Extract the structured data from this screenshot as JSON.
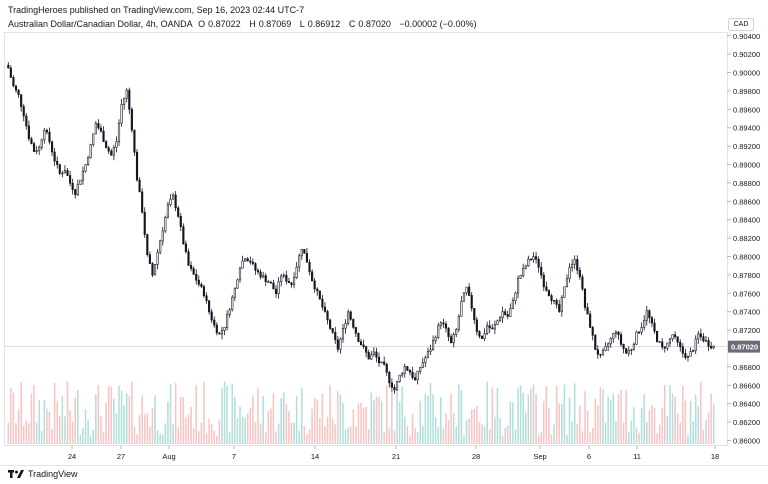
{
  "header": {
    "published_line": "TradingHeroes published on TradingView.com, Sep 16, 2023 02:44 UTC-7",
    "symbol_name": "Australian Dollar/Canadian Dollar, 4h, OANDA",
    "ohlc": {
      "open_label": "O",
      "open": "0.87022",
      "high_label": "H",
      "high": "0.87069",
      "low_label": "L",
      "low": "0.86912",
      "close_label": "C",
      "close": "0.87020",
      "change": "−0.00002 (−0.00%)"
    },
    "currency": "CAD"
  },
  "footer": {
    "brand": "TradingView"
  },
  "colors": {
    "up": "#26a69a",
    "down": "#ef5350",
    "candle": "#131722",
    "vol_up": "#b2dfdb",
    "vol_down": "#f8c4c4"
  },
  "chart_data": {
    "type": "candlestick",
    "title": "",
    "xlabel": "",
    "ylabel": "",
    "ylim": [
      0.8594,
      0.9043
    ],
    "y_ticks": [
      "0.90400",
      "0.90200",
      "0.90000",
      "0.89800",
      "0.89600",
      "0.89400",
      "0.89200",
      "0.89000",
      "0.88800",
      "0.88600",
      "0.88400",
      "0.88200",
      "0.88000",
      "0.87800",
      "0.87600",
      "0.87400",
      "0.87200",
      "0.86800",
      "0.86600",
      "0.86400",
      "0.86200",
      "0.86000"
    ],
    "x_ticks": [
      "24",
      "27",
      "Aug",
      "7",
      "14",
      "21",
      "28",
      "Sep",
      "6",
      "11",
      "18"
    ],
    "last_price": "0.87020",
    "grid": false,
    "close_path": [
      [
        0,
        0.9005
      ],
      [
        2,
        0.8985
      ],
      [
        4,
        0.8975
      ],
      [
        6,
        0.8955
      ],
      [
        8,
        0.893
      ],
      [
        10,
        0.8915
      ],
      [
        12,
        0.8918
      ],
      [
        14,
        0.894
      ],
      [
        16,
        0.8925
      ],
      [
        18,
        0.8905
      ],
      [
        20,
        0.889
      ],
      [
        22,
        0.8895
      ],
      [
        24,
        0.888
      ],
      [
        26,
        0.887
      ],
      [
        28,
        0.8885
      ],
      [
        30,
        0.89
      ],
      [
        32,
        0.892
      ],
      [
        34,
        0.8945
      ],
      [
        36,
        0.8935
      ],
      [
        38,
        0.892
      ],
      [
        40,
        0.891
      ],
      [
        42,
        0.8925
      ],
      [
        44,
        0.8965
      ],
      [
        46,
        0.898
      ],
      [
        48,
        0.894
      ],
      [
        50,
        0.8885
      ],
      [
        52,
        0.885
      ],
      [
        54,
        0.88
      ],
      [
        56,
        0.878
      ],
      [
        58,
        0.8805
      ],
      [
        60,
        0.883
      ],
      [
        62,
        0.8855
      ],
      [
        64,
        0.8865
      ],
      [
        66,
        0.8845
      ],
      [
        68,
        0.8815
      ],
      [
        70,
        0.879
      ],
      [
        72,
        0.878
      ],
      [
        74,
        0.877
      ],
      [
        76,
        0.876
      ],
      [
        78,
        0.874
      ],
      [
        80,
        0.8725
      ],
      [
        82,
        0.8715
      ],
      [
        84,
        0.8725
      ],
      [
        86,
        0.8745
      ],
      [
        88,
        0.8765
      ],
      [
        90,
        0.879
      ],
      [
        92,
        0.88
      ],
      [
        94,
        0.8795
      ],
      [
        96,
        0.8785
      ],
      [
        98,
        0.878
      ],
      [
        100,
        0.8775
      ],
      [
        102,
        0.877
      ],
      [
        104,
        0.876
      ],
      [
        106,
        0.878
      ],
      [
        108,
        0.8775
      ],
      [
        110,
        0.877
      ],
      [
        112,
        0.879
      ],
      [
        114,
        0.881
      ],
      [
        116,
        0.8795
      ],
      [
        118,
        0.8775
      ],
      [
        120,
        0.876
      ],
      [
        122,
        0.8745
      ],
      [
        124,
        0.873
      ],
      [
        126,
        0.8715
      ],
      [
        128,
        0.87
      ],
      [
        130,
        0.872
      ],
      [
        132,
        0.874
      ],
      [
        134,
        0.8725
      ],
      [
        136,
        0.871
      ],
      [
        138,
        0.87
      ],
      [
        140,
        0.869
      ],
      [
        142,
        0.8695
      ],
      [
        144,
        0.8685
      ],
      [
        146,
        0.868
      ],
      [
        148,
        0.8665
      ],
      [
        150,
        0.8655
      ],
      [
        152,
        0.867
      ],
      [
        154,
        0.868
      ],
      [
        156,
        0.8675
      ],
      [
        158,
        0.8665
      ],
      [
        160,
        0.868
      ],
      [
        162,
        0.869
      ],
      [
        164,
        0.87
      ],
      [
        166,
        0.8715
      ],
      [
        168,
        0.873
      ],
      [
        170,
        0.872
      ],
      [
        172,
        0.8705
      ],
      [
        174,
        0.872
      ],
      [
        176,
        0.875
      ],
      [
        178,
        0.8765
      ],
      [
        180,
        0.8745
      ],
      [
        182,
        0.872
      ],
      [
        184,
        0.871
      ],
      [
        186,
        0.8725
      ],
      [
        188,
        0.872
      ],
      [
        190,
        0.873
      ],
      [
        192,
        0.874
      ],
      [
        194,
        0.8735
      ],
      [
        196,
        0.875
      ],
      [
        198,
        0.8775
      ],
      [
        200,
        0.8785
      ],
      [
        202,
        0.8795
      ],
      [
        204,
        0.88
      ],
      [
        206,
        0.879
      ],
      [
        208,
        0.877
      ],
      [
        210,
        0.876
      ],
      [
        212,
        0.875
      ],
      [
        214,
        0.874
      ],
      [
        216,
        0.8765
      ],
      [
        218,
        0.879
      ],
      [
        220,
        0.8795
      ],
      [
        222,
        0.878
      ],
      [
        224,
        0.8745
      ],
      [
        226,
        0.8725
      ],
      [
        228,
        0.87
      ],
      [
        230,
        0.869
      ],
      [
        232,
        0.87
      ],
      [
        234,
        0.871
      ],
      [
        236,
        0.872
      ],
      [
        238,
        0.8705
      ],
      [
        240,
        0.8695
      ],
      [
        242,
        0.87
      ],
      [
        244,
        0.8715
      ],
      [
        246,
        0.8725
      ],
      [
        248,
        0.874
      ],
      [
        250,
        0.8725
      ],
      [
        252,
        0.871
      ],
      [
        254,
        0.87
      ],
      [
        256,
        0.8705
      ],
      [
        258,
        0.8715
      ],
      [
        260,
        0.8705
      ],
      [
        262,
        0.8695
      ],
      [
        264,
        0.869
      ],
      [
        266,
        0.87
      ],
      [
        268,
        0.8715
      ],
      [
        270,
        0.871
      ],
      [
        272,
        0.8705
      ],
      [
        274,
        0.8702
      ]
    ]
  }
}
